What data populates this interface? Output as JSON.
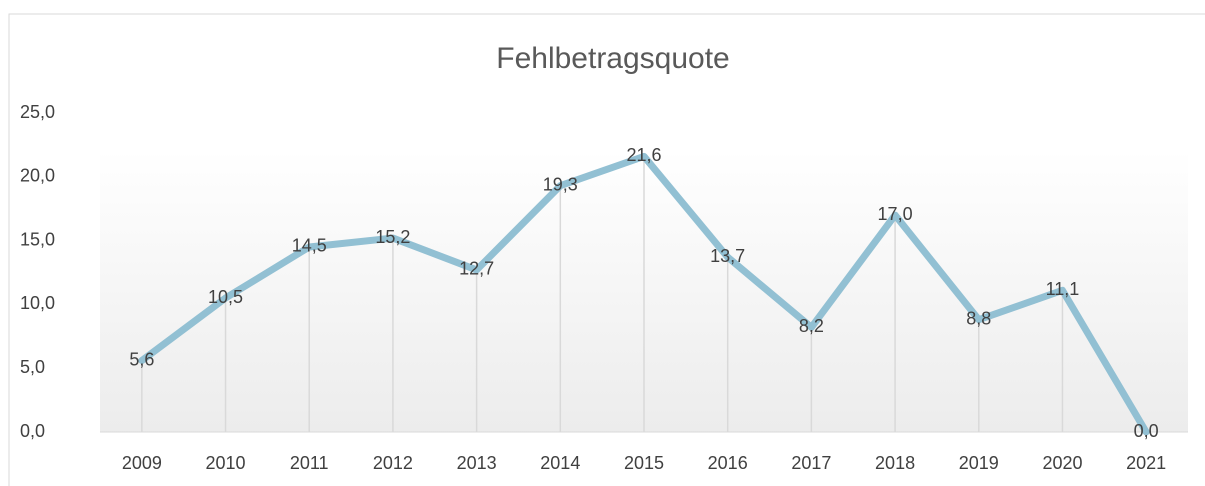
{
  "chart_data": {
    "type": "line",
    "title": "Fehlbetragsquote",
    "categories": [
      "2009",
      "2010",
      "2011",
      "2012",
      "2013",
      "2014",
      "2015",
      "2016",
      "2017",
      "2018",
      "2019",
      "2020",
      "2021"
    ],
    "values": [
      5.6,
      10.5,
      14.5,
      15.2,
      12.7,
      19.3,
      21.6,
      13.7,
      8.2,
      17.0,
      8.8,
      11.1,
      0.0
    ],
    "value_labels": [
      "5,6",
      "10,5",
      "14,5",
      "15,2",
      "12,7",
      "19,3",
      "21,6",
      "13,7",
      "8,2",
      "17,0",
      "8,8",
      "11,1",
      "0,0"
    ],
    "color": "#92c0d3",
    "ylim": [
      0,
      25
    ],
    "yticks": [
      {
        "value": 0,
        "label": "0,0"
      },
      {
        "value": 5,
        "label": "5,0"
      },
      {
        "value": 10,
        "label": "10,0"
      },
      {
        "value": 15,
        "label": "15,0"
      },
      {
        "value": 20,
        "label": "20,0"
      },
      {
        "value": 25,
        "label": "25,0"
      }
    ],
    "drop_lines": true
  }
}
